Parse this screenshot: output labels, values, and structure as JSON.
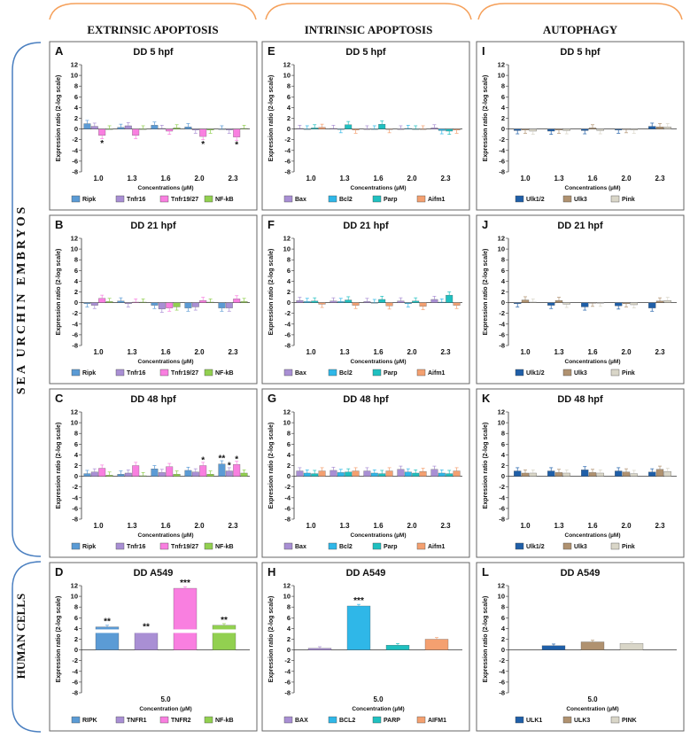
{
  "section_headers": [
    "EXTRINSIC APOPTOSIS",
    "INTRINSIC APOPTOSIS",
    "AUTOPHAGY"
  ],
  "row_groups": [
    "SEA URCHIN EMBRYOS",
    "HUMAN CELLS"
  ],
  "colors": {
    "ripk": "#5b9bd5",
    "tnfr16": "#a98fd4",
    "tnfr19_27": "#f97fe0",
    "nfkb": "#92d050",
    "bax": "#a98fd4",
    "bcl2": "#2fb7e8",
    "parp": "#1fc0c0",
    "aifm1": "#f4a070",
    "ulk12": "#1f5fa8",
    "ulk3": "#b09270",
    "pink": "#d9d6c8",
    "arc": "#f5a05a",
    "bracket": "#4a7fc0"
  },
  "chart_data": [
    {
      "panel": "A",
      "title": "DD 5 hpf",
      "type": "bar",
      "xlabel": "Concentrations (µM)",
      "ylabel": "Expression ratio (2-log scale)",
      "ylim": [
        -8,
        12
      ],
      "yticks": [
        12,
        10,
        8,
        6,
        4,
        2,
        0,
        -2,
        -4,
        -6,
        -8
      ],
      "categories": [
        "1.0",
        "1.3",
        "1.6",
        "2.0",
        "2.3"
      ],
      "series": [
        {
          "name": "Ripk",
          "color": "#5b9bd5",
          "values": [
            1.0,
            0.3,
            0.7,
            0.4,
            0.0
          ]
        },
        {
          "name": "Tnfr16",
          "color": "#a98fd4",
          "values": [
            0.5,
            0.6,
            0.1,
            -0.2,
            -0.2
          ]
        },
        {
          "name": "Tnfr19/27",
          "color": "#f97fe0",
          "values": [
            -1.2,
            -1.2,
            -0.4,
            -1.4,
            -1.5
          ]
        },
        {
          "name": "NF-kB",
          "color": "#92d050",
          "values": [
            0.0,
            0.0,
            0.2,
            -0.2,
            0.1
          ]
        }
      ],
      "annotations": [
        {
          "category": "1.0",
          "series": "Tnfr19/27",
          "text": "*"
        },
        {
          "category": "2.0",
          "series": "Tnfr19/27",
          "text": "*"
        },
        {
          "category": "2.3",
          "series": "Tnfr19/27",
          "text": "*"
        }
      ]
    },
    {
      "panel": "E",
      "title": "DD 5 hpf",
      "type": "bar",
      "xlabel": "Concentrations (µM)",
      "ylabel": "Expression ratio (2-log scale)",
      "ylim": [
        -8,
        12
      ],
      "yticks": [
        12,
        10,
        8,
        6,
        4,
        2,
        0,
        -2,
        -4,
        -6,
        -8
      ],
      "categories": [
        "1.0",
        "1.3",
        "1.6",
        "2.0",
        "2.3"
      ],
      "series": [
        {
          "name": "Bax",
          "color": "#a98fd4",
          "values": [
            0.1,
            0.1,
            0.0,
            0.0,
            0.2
          ]
        },
        {
          "name": "Bcl2",
          "color": "#2fb7e8",
          "values": [
            0.0,
            -0.1,
            0.0,
            0.1,
            -0.3
          ]
        },
        {
          "name": "Parp",
          "color": "#1fc0c0",
          "values": [
            0.2,
            0.8,
            0.9,
            0.0,
            -0.4
          ]
        },
        {
          "name": "Aifm1",
          "color": "#f4a070",
          "values": [
            0.3,
            -0.2,
            -0.1,
            0.0,
            -0.2
          ]
        }
      ],
      "annotations": []
    },
    {
      "panel": "I",
      "title": "DD 5 hpf",
      "type": "bar",
      "xlabel": "Concentrations (µM)",
      "ylabel": "Expression ratio (2-log scale)",
      "ylim": [
        -8,
        12
      ],
      "yticks": [
        12,
        10,
        8,
        6,
        4,
        2,
        0,
        -2,
        -4,
        -6,
        -8
      ],
      "categories": [
        "1.0",
        "1.3",
        "1.6",
        "2.0",
        "2.3"
      ],
      "series": [
        {
          "name": "Ulk1/2",
          "color": "#1f5fa8",
          "values": [
            -0.3,
            -0.4,
            -0.3,
            -0.2,
            0.5
          ]
        },
        {
          "name": "Ulk3",
          "color": "#b09270",
          "values": [
            -0.2,
            -0.2,
            0.2,
            -0.1,
            0.4
          ]
        },
        {
          "name": "Pink",
          "color": "#d9d6c8",
          "values": [
            -0.4,
            -0.3,
            -0.3,
            -0.2,
            0.4
          ]
        }
      ],
      "annotations": []
    },
    {
      "panel": "B",
      "title": "DD 21 hpf",
      "type": "bar",
      "xlabel": "Concentrations (µM)",
      "ylabel": "Expression ratio (2-log scale)",
      "ylim": [
        -8,
        12
      ],
      "yticks": [
        12,
        10,
        8,
        6,
        4,
        2,
        0,
        -2,
        -4,
        -6,
        -8
      ],
      "categories": [
        "1.0",
        "1.3",
        "1.6",
        "2.0",
        "2.3"
      ],
      "series": [
        {
          "name": "Ripk",
          "color": "#5b9bd5",
          "values": [
            -0.2,
            0.3,
            -0.5,
            -1.0,
            -1.0
          ]
        },
        {
          "name": "Tnfr16",
          "color": "#a98fd4",
          "values": [
            -0.5,
            -0.2,
            -1.2,
            -0.8,
            -1.0
          ]
        },
        {
          "name": "Tnfr19/27",
          "color": "#f97fe0",
          "values": [
            0.8,
            0.1,
            -1.0,
            0.4,
            0.7
          ]
        },
        {
          "name": "NF-kB",
          "color": "#92d050",
          "values": [
            0.2,
            0.1,
            -0.8,
            0.1,
            0.2
          ]
        }
      ],
      "annotations": []
    },
    {
      "panel": "F",
      "title": "DD 21 hpf",
      "type": "bar",
      "xlabel": "Concentrations (µM)",
      "ylabel": "Expression ratio (2-log scale)",
      "ylim": [
        -8,
        12
      ],
      "yticks": [
        12,
        10,
        8,
        6,
        4,
        2,
        0,
        -2,
        -4,
        -6,
        -8
      ],
      "categories": [
        "1.0",
        "1.3",
        "1.6",
        "2.0",
        "2.3"
      ],
      "series": [
        {
          "name": "Bax",
          "color": "#a98fd4",
          "values": [
            0.4,
            0.3,
            0.2,
            0.3,
            0.6
          ]
        },
        {
          "name": "Bcl2",
          "color": "#2fb7e8",
          "values": [
            0.2,
            0.2,
            0.0,
            -0.2,
            0.1
          ]
        },
        {
          "name": "Parp",
          "color": "#1fc0c0",
          "values": [
            0.3,
            0.5,
            0.6,
            0.3,
            1.4
          ]
        },
        {
          "name": "Aifm1",
          "color": "#f4a070",
          "values": [
            -0.3,
            -0.5,
            -0.6,
            -0.7,
            -0.5
          ]
        }
      ],
      "annotations": []
    },
    {
      "panel": "J",
      "title": "DD 21 hpf",
      "type": "bar",
      "xlabel": "Concentrations (µM)",
      "ylabel": "Expression ratio (2-log scale)",
      "ylim": [
        -8,
        12
      ],
      "yticks": [
        12,
        10,
        8,
        6,
        4,
        2,
        0,
        -2,
        -4,
        -6,
        -8
      ],
      "categories": [
        "1.0",
        "1.3",
        "1.6",
        "2.0",
        "2.3"
      ],
      "series": [
        {
          "name": "Ulk1/2",
          "color": "#1f5fa8",
          "values": [
            -0.2,
            -0.5,
            -0.8,
            -0.6,
            -1.0
          ]
        },
        {
          "name": "Ulk3",
          "color": "#b09270",
          "values": [
            0.5,
            0.4,
            -0.1,
            -0.2,
            0.3
          ]
        },
        {
          "name": "Pink",
          "color": "#d9d6c8",
          "values": [
            0.1,
            -0.3,
            -0.1,
            -0.4,
            0.4
          ]
        }
      ],
      "annotations": []
    },
    {
      "panel": "C",
      "title": "DD 48 hpf",
      "type": "bar",
      "xlabel": "Concentrations (µM)",
      "ylabel": "Expression ratio (2-log scale)",
      "ylim": [
        -8,
        12
      ],
      "yticks": [
        12,
        10,
        8,
        6,
        4,
        2,
        0,
        -2,
        -4,
        -6,
        -8
      ],
      "categories": [
        "1.0",
        "1.3",
        "1.6",
        "2.0",
        "2.3"
      ],
      "series": [
        {
          "name": "Ripk",
          "color": "#5b9bd5",
          "values": [
            0.5,
            0.4,
            1.4,
            1.1,
            2.3
          ]
        },
        {
          "name": "Tnfr16",
          "color": "#a98fd4",
          "values": [
            0.8,
            0.6,
            0.7,
            0.8,
            1.0
          ]
        },
        {
          "name": "Tnfr19/27",
          "color": "#f97fe0",
          "values": [
            1.5,
            2.0,
            1.8,
            2.0,
            2.2
          ]
        },
        {
          "name": "NF-kB",
          "color": "#92d050",
          "values": [
            0.2,
            0.1,
            0.4,
            0.4,
            0.6
          ]
        }
      ],
      "annotations": [
        {
          "category": "2.0",
          "series": "Tnfr19/27",
          "text": "*"
        },
        {
          "category": "2.3",
          "series": "Ripk",
          "text": "**"
        },
        {
          "category": "2.3",
          "series": "Tnfr16",
          "text": "*"
        },
        {
          "category": "2.3",
          "series": "Tnfr19/27",
          "text": "*"
        }
      ]
    },
    {
      "panel": "G",
      "title": "DD 48 hpf",
      "type": "bar",
      "xlabel": "Concentrations (µM)",
      "ylabel": "Expression ratio (2-log scale)",
      "ylim": [
        -8,
        12
      ],
      "yticks": [
        12,
        10,
        8,
        6,
        4,
        2,
        0,
        -2,
        -4,
        -6,
        -8
      ],
      "categories": [
        "1.0",
        "1.3",
        "1.6",
        "2.0",
        "2.3"
      ],
      "series": [
        {
          "name": "Bax",
          "color": "#a98fd4",
          "values": [
            1.0,
            1.1,
            1.0,
            1.3,
            1.3
          ]
        },
        {
          "name": "Bcl2",
          "color": "#2fb7e8",
          "values": [
            0.6,
            0.7,
            0.6,
            0.8,
            0.6
          ]
        },
        {
          "name": "Parp",
          "color": "#1fc0c0",
          "values": [
            0.5,
            0.8,
            0.5,
            0.6,
            0.5
          ]
        },
        {
          "name": "Aifm1",
          "color": "#f4a070",
          "values": [
            1.0,
            1.0,
            1.0,
            0.9,
            1.0
          ]
        }
      ],
      "annotations": []
    },
    {
      "panel": "K",
      "title": "DD 48 hpf",
      "type": "bar",
      "xlabel": "Concentrations (µM)",
      "ylabel": "Expression ratio (2-log scale)",
      "ylim": [
        -8,
        12
      ],
      "yticks": [
        12,
        10,
        8,
        6,
        4,
        2,
        0,
        -2,
        -4,
        -6,
        -8
      ],
      "categories": [
        "1.0",
        "1.3",
        "1.6",
        "2.0",
        "2.3"
      ],
      "series": [
        {
          "name": "Ulk1/2",
          "color": "#1f5fa8",
          "values": [
            1.0,
            1.0,
            1.2,
            1.0,
            0.8
          ]
        },
        {
          "name": "Ulk3",
          "color": "#b09270",
          "values": [
            0.6,
            0.7,
            0.7,
            0.8,
            1.3
          ]
        },
        {
          "name": "Pink",
          "color": "#d9d6c8",
          "values": [
            0.6,
            0.6,
            0.6,
            0.5,
            0.9
          ]
        }
      ],
      "annotations": []
    },
    {
      "panel": "D",
      "title": "DD A549",
      "type": "bar",
      "xlabel": "Concentration (µM)",
      "ylabel": "Expression ratio (2-log scale)",
      "ylim": [
        -8,
        12
      ],
      "yticks": [
        12,
        10,
        8,
        6,
        4,
        2,
        0,
        -2,
        -4,
        -6,
        -8
      ],
      "categories": [
        "5.0"
      ],
      "broken_axis": true,
      "series": [
        {
          "name": "RIPK",
          "color": "#5b9bd5",
          "values": [
            4.3
          ]
        },
        {
          "name": "TNFR1",
          "color": "#a98fd4",
          "values": [
            3.3
          ]
        },
        {
          "name": "TNFR2",
          "color": "#f97fe0",
          "values": [
            11.5
          ]
        },
        {
          "name": "NF-kB",
          "color": "#92d050",
          "values": [
            4.6
          ]
        }
      ],
      "annotations": [
        {
          "category": "5.0",
          "series": "RIPK",
          "text": "**"
        },
        {
          "category": "5.0",
          "series": "TNFR1",
          "text": "**"
        },
        {
          "category": "5.0",
          "series": "TNFR2",
          "text": "***"
        },
        {
          "category": "5.0",
          "series": "NF-kB",
          "text": "**"
        }
      ]
    },
    {
      "panel": "H",
      "title": "DD A549",
      "type": "bar",
      "xlabel": "Concentration (µM)",
      "ylabel": "Expression ratio (2-log scale)",
      "ylim": [
        -8,
        12
      ],
      "yticks": [
        12,
        10,
        8,
        6,
        4,
        2,
        0,
        -2,
        -4,
        -6,
        -8
      ],
      "categories": [
        "5.0"
      ],
      "series": [
        {
          "name": "BAX",
          "color": "#a98fd4",
          "values": [
            0.3
          ]
        },
        {
          "name": "BCL2",
          "color": "#2fb7e8",
          "values": [
            8.2
          ]
        },
        {
          "name": "PARP",
          "color": "#1fc0c0",
          "values": [
            0.9
          ]
        },
        {
          "name": "AIFM1",
          "color": "#f4a070",
          "values": [
            2.0
          ]
        }
      ],
      "annotations": [
        {
          "category": "5.0",
          "series": "BCL2",
          "text": "***"
        }
      ]
    },
    {
      "panel": "L",
      "title": "DD A549",
      "type": "bar",
      "xlabel": "Concentration (µM)",
      "ylabel": "Expression ratio (2-log scale)",
      "ylim": [
        -8,
        12
      ],
      "yticks": [
        12,
        10,
        8,
        6,
        4,
        2,
        0,
        -2,
        -4,
        -6,
        -8
      ],
      "categories": [
        "5.0"
      ],
      "series": [
        {
          "name": "ULK1",
          "color": "#1f5fa8",
          "values": [
            0.8
          ]
        },
        {
          "name": "ULK3",
          "color": "#b09270",
          "values": [
            1.5
          ]
        },
        {
          "name": "PINK",
          "color": "#d9d6c8",
          "values": [
            1.2
          ]
        }
      ],
      "annotations": []
    }
  ]
}
